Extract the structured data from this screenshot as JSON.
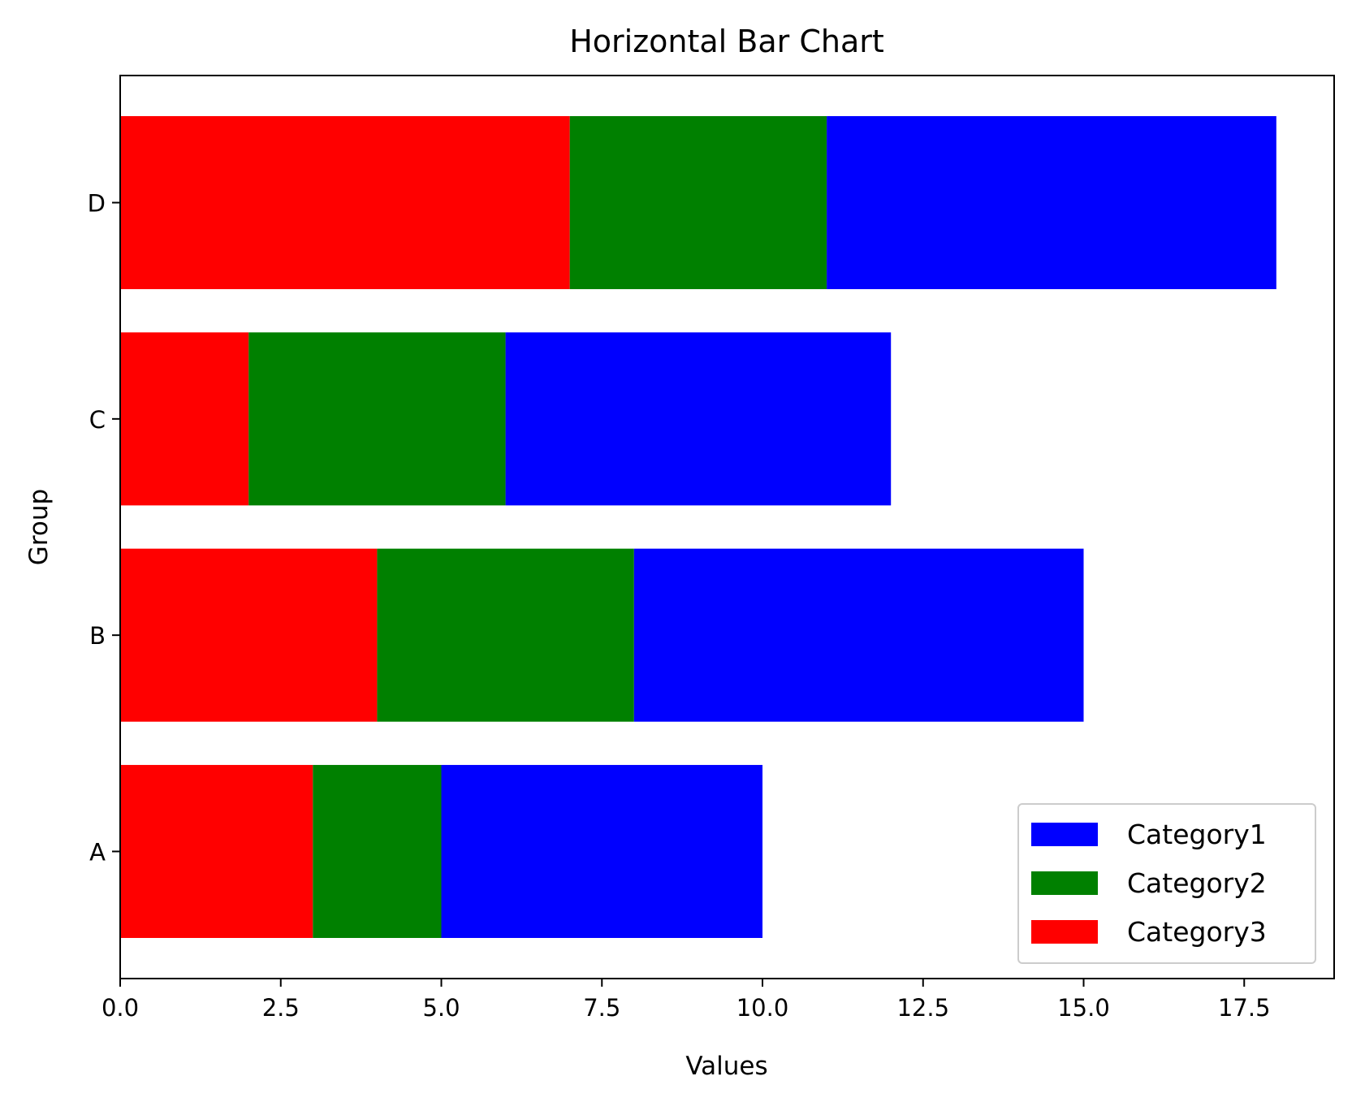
{
  "chart_data": {
    "type": "bar",
    "orientation": "horizontal",
    "stacked": true,
    "title": "Horizontal Bar Chart",
    "xlabel": "Values",
    "ylabel": "Group",
    "categories": [
      "A",
      "B",
      "C",
      "D"
    ],
    "xlim": [
      0,
      18.9
    ],
    "xticks": [
      "0.0",
      "2.5",
      "5.0",
      "7.5",
      "10.0",
      "12.5",
      "15.0",
      "17.5"
    ],
    "series": [
      {
        "name": "Category3",
        "color": "#ff0000",
        "values": [
          3,
          4,
          2,
          7
        ]
      },
      {
        "name": "Category2",
        "color": "#008000",
        "values": [
          2,
          4,
          4,
          4
        ]
      },
      {
        "name": "Category1",
        "color": "#0000ff",
        "values": [
          5,
          7,
          6,
          7
        ]
      }
    ],
    "legend": {
      "placement": "lower-right",
      "order": [
        "Category1",
        "Category2",
        "Category3"
      ]
    },
    "grid": false
  }
}
